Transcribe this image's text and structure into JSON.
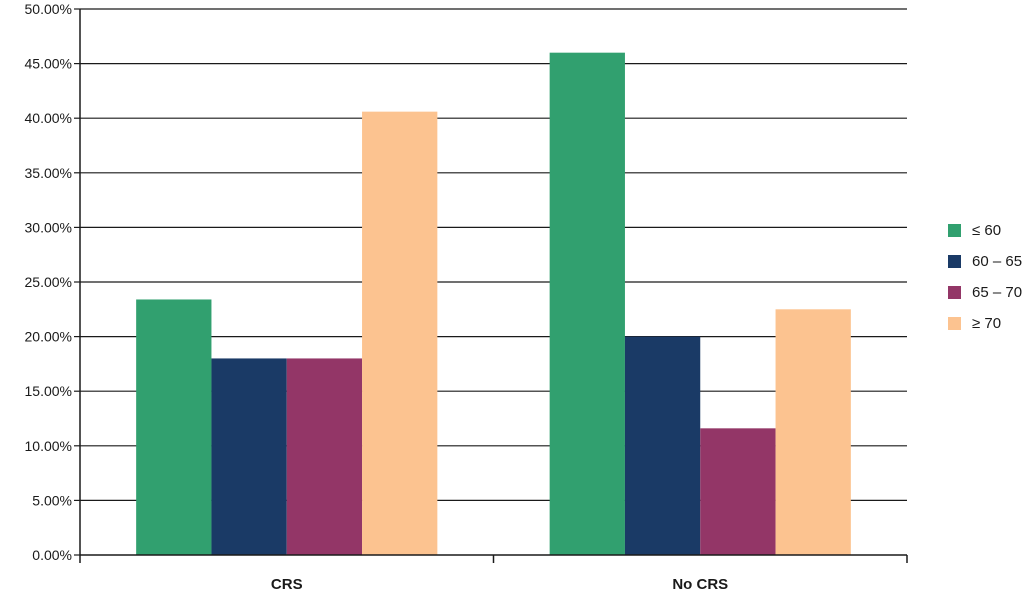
{
  "chart_data": {
    "type": "bar",
    "title": "",
    "xlabel": "",
    "ylabel": "",
    "categories": [
      "CRS",
      "No CRS"
    ],
    "series": [
      {
        "name": "≤ 60",
        "color": "#31a06f",
        "values": [
          23.4,
          46.0
        ]
      },
      {
        "name": "60 – 65",
        "color": "#1a3a66",
        "values": [
          18.0,
          20.0
        ]
      },
      {
        "name": "65 – 70",
        "color": "#933667",
        "values": [
          18.0,
          11.6
        ]
      },
      {
        "name": "≥ 70",
        "color": "#fcc390",
        "values": [
          40.6,
          22.5
        ]
      }
    ],
    "ylim": [
      0,
      50
    ],
    "yticks": [
      0,
      5,
      10,
      15,
      20,
      25,
      30,
      35,
      40,
      45,
      50
    ],
    "ytick_labels": [
      "0.00%",
      "5.00%",
      "10.00%",
      "15.00%",
      "20.00%",
      "25.00%",
      "30.00%",
      "35.00%",
      "40.00%",
      "45.00%",
      "50.00%"
    ],
    "grid": true,
    "legend_position": "right"
  }
}
